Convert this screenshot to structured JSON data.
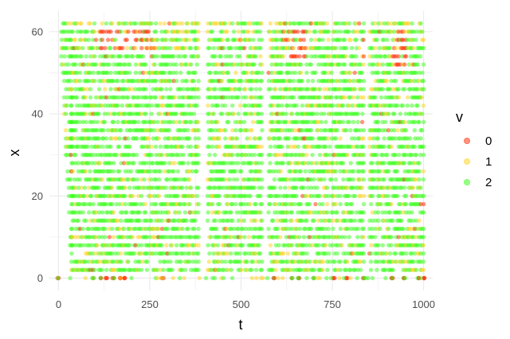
{
  "chart_data": {
    "type": "scatter",
    "title": "",
    "xlabel": "t",
    "ylabel": "x",
    "xlim": [
      -25,
      1025
    ],
    "ylim": [
      -3,
      65
    ],
    "x_ticks": [
      0,
      250,
      500,
      750,
      1000
    ],
    "y_ticks": [
      0,
      20,
      40,
      60
    ],
    "grid": true,
    "legend": {
      "title": "v",
      "placement": "right",
      "entries": [
        {
          "label": "0",
          "color": "#ff2a00"
        },
        {
          "label": "1",
          "color": "#ffd21a"
        },
        {
          "label": "2",
          "color": "#33ff14"
        }
      ]
    },
    "point_alpha": 0.5,
    "lane_spacing": 2,
    "lane_x_max": 62,
    "time_step": 4,
    "gaps": [
      [
        395,
        405
      ],
      [
        560,
        572
      ],
      [
        838,
        848
      ]
    ],
    "bands": [
      {
        "t": [
          35,
          385
        ],
        "x_min": 2
      },
      {
        "t": [
          405,
          560
        ],
        "x_min": 2
      },
      {
        "t": [
          572,
          838
        ],
        "x_min": 2
      },
      {
        "t": [
          848,
          1000
        ],
        "x_min": 2
      }
    ],
    "jam_regions": [
      {
        "t": [
          115,
          265
        ],
        "x": [
          56,
          60
        ]
      },
      {
        "t": [
          615,
          680
        ],
        "x": [
          54,
          60
        ]
      },
      {
        "t": [
          915,
          955
        ],
        "x": [
          52,
          60
        ]
      }
    ],
    "bottom_stops_t": [
      0,
      95,
      118,
      130,
      150,
      168,
      180,
      285,
      590,
      640,
      660,
      700,
      755,
      790,
      835,
      915,
      945,
      985,
      1000
    ]
  }
}
